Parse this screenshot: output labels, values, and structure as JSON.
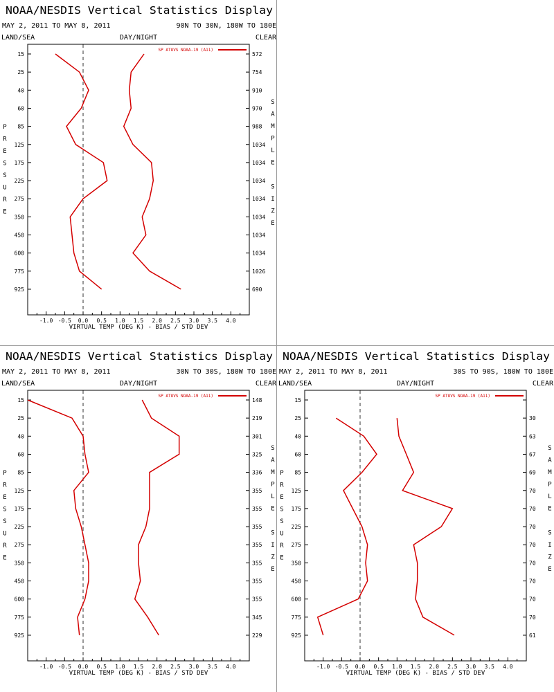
{
  "panels": [
    {
      "title": "NOAA/NESDIS Vertical Statistics Display",
      "date_range": "MAY 2, 2011 TO MAY 8, 2011",
      "region": "90N TO 30N, 180W TO 180E",
      "left_label": "LAND/SEA",
      "center_label": "DAY/NIGHT",
      "right_label": "CLEAR",
      "y_axis_label": "PRESSURE",
      "right_axis_label": "SAMPLE SIZE",
      "x_axis_label": "VIRTUAL TEMP (DEG K) - BIAS / STD DEV",
      "legend": "SP ATOVS NOAA-19 (A11)",
      "line_color": "#d40000",
      "chart_data": {
        "type": "line",
        "pressure_levels": [
          "15",
          "25",
          "40",
          "60",
          "85",
          "125",
          "175",
          "225",
          "275",
          "350",
          "450",
          "600",
          "775",
          "925"
        ],
        "x_ticks": [
          "-1.0",
          "-0.5",
          "0.0",
          "0.5",
          "1.0",
          "1.5",
          "2.0",
          "2.5",
          "3.0",
          "3.5",
          "4.0"
        ],
        "xlim": [
          -1.5,
          4.5
        ],
        "zero_line": 0.0,
        "bias": [
          -0.75,
          -0.1,
          0.15,
          -0.05,
          -0.45,
          -0.2,
          0.55,
          0.65,
          0.0,
          -0.35,
          -0.3,
          -0.25,
          -0.1,
          0.5
        ],
        "std_dev": [
          1.65,
          1.3,
          1.25,
          1.3,
          1.1,
          1.35,
          1.85,
          1.9,
          1.8,
          1.6,
          1.7,
          1.35,
          1.8,
          2.65
        ],
        "sample_size": [
          "572",
          "754",
          "910",
          "970",
          "988",
          "1034",
          "1034",
          "1034",
          "1034",
          "1034",
          "1034",
          "1034",
          "1026",
          "690"
        ]
      }
    },
    {
      "title": "NOAA/NESDIS Vertical Statistics Display",
      "date_range": "MAY 2, 2011 TO MAY 8, 2011",
      "region": "30N TO 30S, 180W TO 180E",
      "left_label": "LAND/SEA",
      "center_label": "DAY/NIGHT",
      "right_label": "CLEAR",
      "y_axis_label": "PRESSURE",
      "right_axis_label": "SAMPLE SIZE",
      "x_axis_label": "VIRTUAL TEMP (DEG K) - BIAS / STD DEV",
      "legend": "SP ATOVS NOAA-19 (A11)",
      "line_color": "#d40000",
      "chart_data": {
        "type": "line",
        "pressure_levels": [
          "15",
          "25",
          "40",
          "60",
          "85",
          "125",
          "175",
          "225",
          "275",
          "350",
          "450",
          "600",
          "775",
          "925"
        ],
        "x_ticks": [
          "-1.0",
          "-0.5",
          "0.0",
          "0.5",
          "1.0",
          "1.5",
          "2.0",
          "2.5",
          "3.0",
          "3.5",
          "4.0"
        ],
        "xlim": [
          -1.5,
          4.5
        ],
        "zero_line": 0.0,
        "bias": [
          -1.5,
          -0.3,
          0.0,
          0.05,
          0.15,
          -0.25,
          -0.2,
          -0.05,
          0.05,
          0.15,
          0.15,
          0.05,
          -0.15,
          -0.1
        ],
        "std_dev": [
          1.6,
          1.85,
          2.6,
          2.6,
          1.8,
          1.8,
          1.8,
          1.7,
          1.5,
          1.5,
          1.55,
          1.4,
          1.75,
          2.05
        ],
        "sample_size": [
          "148",
          "219",
          "301",
          "325",
          "336",
          "355",
          "355",
          "355",
          "355",
          "355",
          "355",
          "355",
          "345",
          "229"
        ]
      }
    },
    {
      "title": "NOAA/NESDIS Vertical Statistics Display",
      "date_range": "MAY 2, 2011 TO MAY 8, 2011",
      "region": "30S TO 90S, 180W TO 180E",
      "left_label": "LAND/SEA",
      "center_label": "DAY/NIGHT",
      "right_label": "CLEAR",
      "y_axis_label": "PRESSURE",
      "right_axis_label": "SAMPLE SIZE",
      "x_axis_label": "VIRTUAL TEMP (DEG K) - BIAS / STD DEV",
      "legend": "SP ATOVS NOAA-19 (A11)",
      "line_color": "#d40000",
      "chart_data": {
        "type": "line",
        "pressure_levels": [
          "15",
          "25",
          "40",
          "60",
          "85",
          "125",
          "175",
          "225",
          "275",
          "350",
          "450",
          "600",
          "775",
          "925"
        ],
        "x_ticks": [
          "-1.0",
          "-0.5",
          "0.0",
          "0.5",
          "1.0",
          "1.5",
          "2.0",
          "2.5",
          "3.0",
          "3.5",
          "4.0"
        ],
        "xlim": [
          -1.5,
          4.5
        ],
        "zero_line": 0.0,
        "bias": [
          null,
          -0.65,
          0.1,
          0.45,
          0.05,
          -0.45,
          -0.2,
          0.05,
          0.2,
          0.15,
          0.2,
          -0.05,
          -1.15,
          -1.0
        ],
        "std_dev": [
          null,
          1.0,
          1.05,
          1.25,
          1.45,
          1.15,
          2.5,
          2.2,
          1.45,
          1.55,
          1.55,
          1.5,
          1.7,
          2.55
        ],
        "sample_size": [
          "",
          "30",
          "63",
          "67",
          "69",
          "70",
          "70",
          "70",
          "70",
          "70",
          "70",
          "70",
          "70",
          "61"
        ]
      }
    }
  ]
}
